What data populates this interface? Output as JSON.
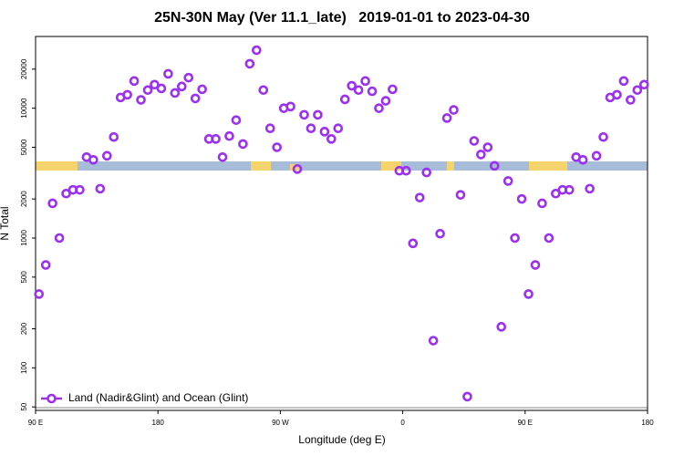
{
  "chart_data": {
    "type": "scatter",
    "title": "25N-30N May (Ver 11.1_late)   2019-01-01 to 2023-04-30",
    "x_label": "Longitude (deg E)",
    "y_label": "N Total",
    "log_y": true,
    "xlim": [
      90,
      540
    ],
    "ylim": [
      47,
      35700
    ],
    "xticks": [
      {
        "value": 90,
        "label": "90 E"
      },
      180,
      {
        "value": 270,
        "label": "90 W"
      },
      {
        "value": 360,
        "label": "0"
      },
      {
        "value": 450,
        "label": "90 E"
      },
      {
        "value": 540,
        "label": "180"
      }
    ],
    "yticks": [
      50,
      100,
      200,
      500,
      1000,
      2000,
      5000,
      10000,
      20000
    ],
    "legend_position": "lower left",
    "series": [
      {
        "name": "Land (Nadir&Glint) and Ocean (Glint)",
        "color": "#9b30f0",
        "x": [
          92.5,
          97.5,
          102.5,
          107.5,
          112.5,
          117.5,
          122.5,
          127.5,
          132.5,
          137.5,
          142.5,
          147.5,
          152.5,
          157.5,
          162.5,
          167.5,
          172.5,
          177.5,
          182.5,
          187.5,
          192.5,
          197.5,
          202.5,
          207.5,
          212.5,
          217.5,
          222.5,
          227.5,
          232.5,
          237.5,
          242.5,
          247.5,
          252.5,
          257.5,
          262.5,
          267.5,
          272.5,
          277.5,
          282.5,
          287.5,
          292.5,
          297.5,
          302.5,
          307.5,
          312.5,
          317.5,
          322.5,
          327.5,
          332.5,
          337.5,
          342.5,
          347.5,
          352.5,
          357.5,
          362.5,
          367.5,
          372.5,
          377.5,
          382.5,
          387.5,
          392.5,
          397.5,
          402.5,
          407.5,
          412.5,
          417.5,
          422.5,
          427.5,
          432.5,
          437.5,
          442.5,
          447.5,
          452.5,
          457.5,
          462.5,
          467.5,
          472.5,
          477.5,
          482.5,
          487.5,
          492.5,
          497.5,
          502.5,
          507.5,
          512.5,
          517.5,
          522.5,
          527.5,
          532.5,
          537.5
        ],
        "values": [
          370,
          620,
          1850,
          1000,
          2200,
          2350,
          2350,
          4200,
          4000,
          2400,
          4300,
          6000,
          12100,
          12700,
          16200,
          11600,
          13800,
          15200,
          14200,
          18400,
          13100,
          14700,
          17200,
          11900,
          14000,
          5800,
          5800,
          4200,
          6100,
          8100,
          5300,
          22000,
          28000,
          13800,
          7000,
          5000,
          10000,
          10300,
          3400,
          8900,
          7000,
          8900,
          6600,
          5800,
          7000,
          11700,
          14900,
          13800,
          16200,
          13500,
          10000,
          11400,
          14000,
          3300,
          3300,
          910,
          2050,
          3200,
          162,
          1080,
          8400,
          9700,
          2150,
          60,
          5600,
          4400,
          5000,
          3600,
          207,
          2750,
          1000,
          2000,
          370,
          620,
          1850,
          1000,
          2200,
          2350,
          2350,
          4200,
          4000,
          2400,
          4300,
          6000,
          12100,
          12700,
          16200,
          11600,
          13800,
          15200
        ]
      }
    ]
  }
}
